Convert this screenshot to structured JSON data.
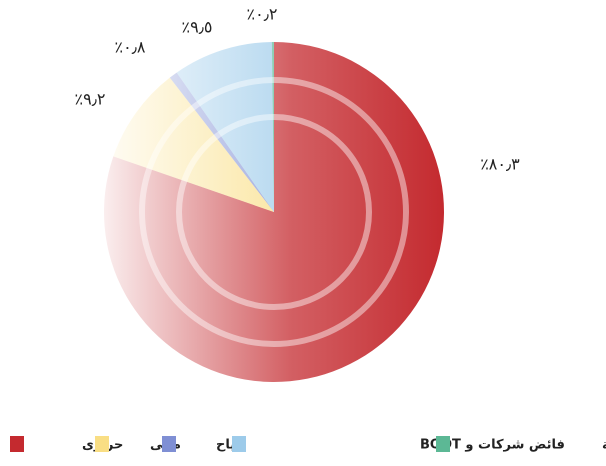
{
  "chart_data": {
    "type": "pie",
    "categories": [
      "حرارى",
      "مائى",
      "رياح",
      "فائض شركات و BOOT",
      "المحطات غير المربوطة"
    ],
    "values": [
      80.3,
      9.2,
      0.8,
      9.5,
      0.2
    ],
    "value_labels": [
      "٪٨٠٫٣",
      "٪٩٫٢",
      "٪٠٫٨",
      "٪٩٫٥",
      "٪٠٫٢"
    ],
    "colors": [
      "#c42a2f",
      "#f9de84",
      "#7f8fd4",
      "#9dcbea",
      "#5cb895"
    ]
  }
}
